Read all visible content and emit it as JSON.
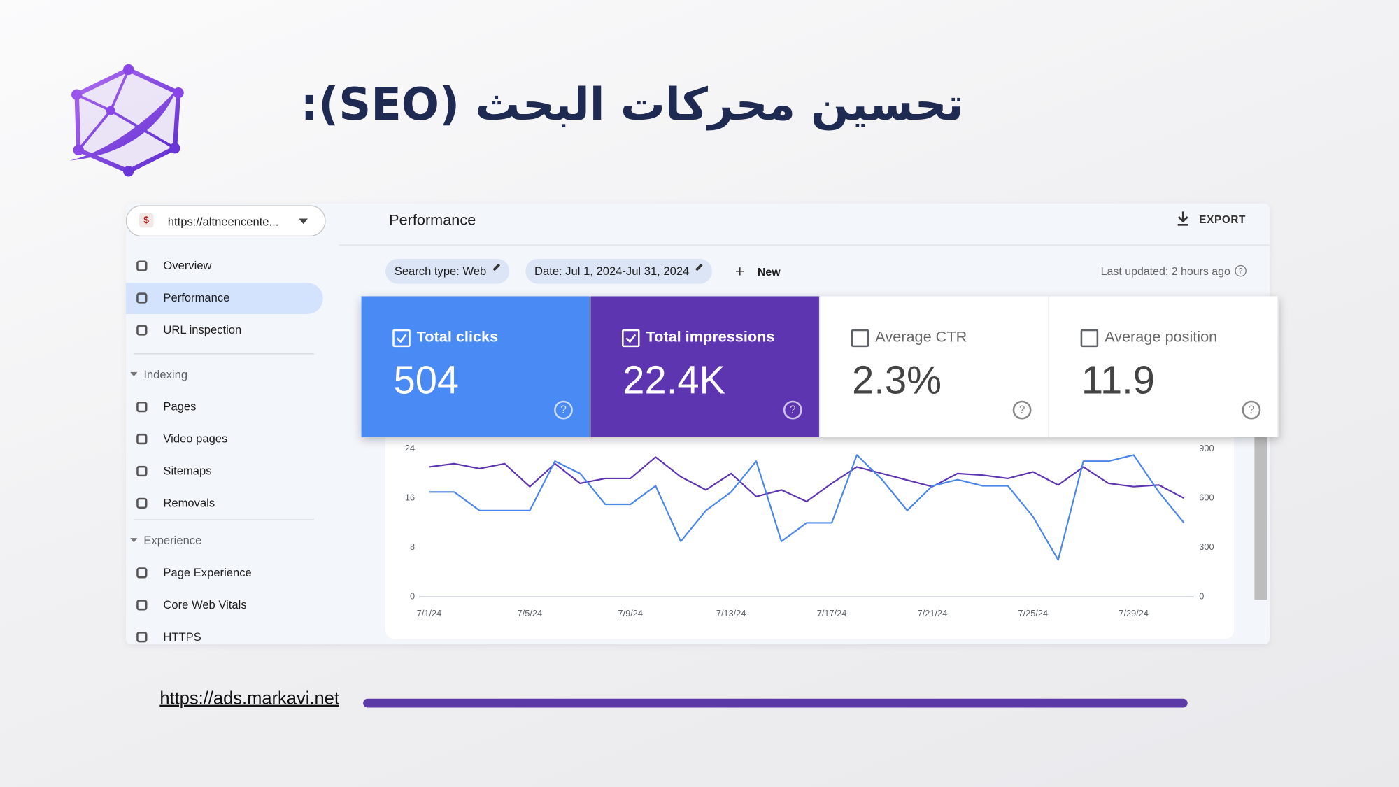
{
  "header": {
    "title": "تحسين محركات البحث (SEO):"
  },
  "sidebar": {
    "property": "https://altneencente...",
    "nav": [
      "Overview",
      "Performance",
      "URL inspection"
    ],
    "active": 1,
    "sections": [
      {
        "title": "Indexing",
        "items": [
          "Pages",
          "Video pages",
          "Sitemaps",
          "Removals"
        ]
      },
      {
        "title": "Experience",
        "items": [
          "Page Experience",
          "Core Web Vitals",
          "HTTPS"
        ]
      }
    ]
  },
  "toolbar": {
    "title": "Performance",
    "export": "EXPORT",
    "filters": [
      "Search type: Web",
      "Date: Jul 1, 2024-Jul 31, 2024"
    ],
    "new": "New",
    "last_updated": "Last updated: 2 hours ago"
  },
  "metrics": [
    {
      "label": "Total clicks",
      "value": "504",
      "checked": true,
      "color": "#4a8af4"
    },
    {
      "label": "Total impressions",
      "value": "22.4K",
      "checked": true,
      "color": "#5e35b1"
    },
    {
      "label": "Average CTR",
      "value": "2.3%",
      "checked": false,
      "color": "#ffffff"
    },
    {
      "label": "Average position",
      "value": "11.9",
      "checked": false,
      "color": "#ffffff"
    }
  ],
  "chart_data": {
    "type": "line",
    "categories": [
      "7/1/24",
      null,
      null,
      null,
      "7/5/24",
      null,
      null,
      null,
      "7/9/24",
      null,
      null,
      null,
      "7/13/24",
      null,
      null,
      null,
      "7/17/24",
      null,
      null,
      null,
      "7/21/24",
      null,
      null,
      null,
      "7/25/24",
      null,
      null,
      null,
      "7/29/24",
      null,
      null
    ],
    "series": [
      {
        "color": "#4a86e8",
        "axis": "y",
        "values": [
          17,
          17,
          14,
          14,
          14,
          22,
          20,
          15,
          15,
          18,
          9,
          14,
          17,
          22,
          9,
          12,
          12,
          23,
          19,
          14,
          18,
          19,
          18,
          18,
          13,
          6,
          22,
          22,
          23,
          17,
          12
        ]
      },
      {
        "color": "#5e35b1",
        "axis": "y2",
        "values": [
          790,
          810,
          780,
          810,
          670,
          810,
          690,
          720,
          720,
          850,
          730,
          650,
          750,
          610,
          650,
          580,
          690,
          790,
          750,
          710,
          670,
          750,
          740,
          720,
          760,
          680,
          790,
          690,
          670,
          680,
          600
        ]
      }
    ],
    "ylim": [
      0,
      24
    ],
    "yticks": [
      0,
      8,
      16,
      24
    ],
    "y2lim": [
      0,
      900
    ],
    "y2ticks": [
      0,
      300,
      600,
      900
    ],
    "grid": false
  },
  "footer": {
    "url": "https://ads.markavi.net"
  }
}
